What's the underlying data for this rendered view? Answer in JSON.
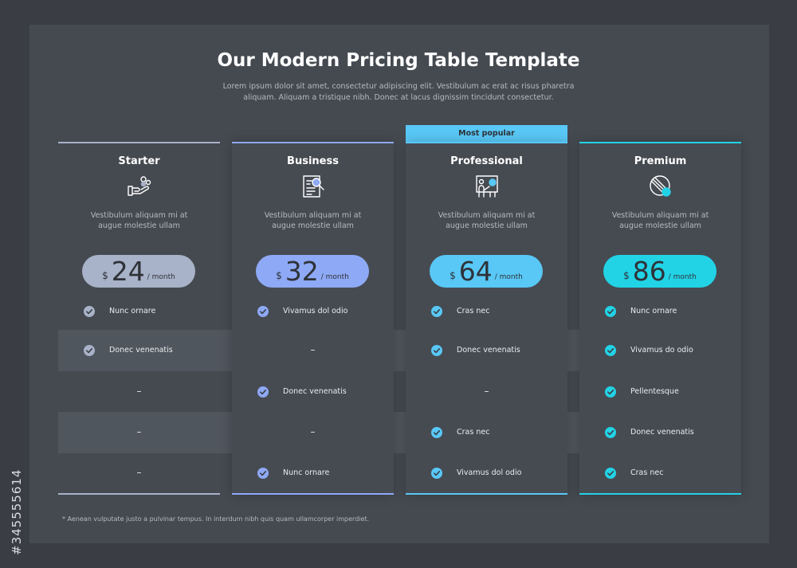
{
  "header": {
    "title": "Our Modern Pricing Table Template",
    "subtitle_line1": "Lorem ipsum dolor sit amet, consectetur adipiscing elit. Vestibulum ac erat ac risus pharetra",
    "subtitle_line2": "aliquam. Aliquam a tristique nibh. Donec at lacus dignissim tincidunt consectetur."
  },
  "popular_badge": "Most popular",
  "footnote": "* Aenean vulputate justo a pulvinar tempus. In interdum nibh quis quam ullamcorper imperdiet.",
  "side_id": "#345555614",
  "dash": "–",
  "plans": [
    {
      "name": "Starter",
      "icon": "hand-coins-icon",
      "color": "#a8b2c8",
      "desc_line1": "Vestibulum aliquam mi at",
      "desc_line2": "augue molestie ullam",
      "currency": "$",
      "price": "24",
      "period": "/ month",
      "features": [
        {
          "included": true,
          "text": "Nunc ornare"
        },
        {
          "included": true,
          "text": "Donec venenatis"
        },
        {
          "included": false,
          "text": ""
        },
        {
          "included": false,
          "text": ""
        },
        {
          "included": false,
          "text": ""
        }
      ]
    },
    {
      "name": "Business",
      "icon": "document-search-icon",
      "color": "#8ea9f5",
      "desc_line1": "Vestibulum aliquam mi at",
      "desc_line2": "augue molestie ullam",
      "currency": "$",
      "price": "32",
      "period": "/ month",
      "features": [
        {
          "included": true,
          "text": "Vivamus dol odio"
        },
        {
          "included": false,
          "text": ""
        },
        {
          "included": true,
          "text": "Donec venenatis"
        },
        {
          "included": false,
          "text": ""
        },
        {
          "included": true,
          "text": "Nunc ornare"
        }
      ]
    },
    {
      "name": "Professional",
      "icon": "presentation-icon",
      "color": "#59c8f6",
      "desc_line1": "Vestibulum aliquam mi at",
      "desc_line2": "augue molestie ullam",
      "currency": "$",
      "price": "64",
      "period": "/ month",
      "features": [
        {
          "included": true,
          "text": "Cras nec"
        },
        {
          "included": true,
          "text": "Donec venenatis"
        },
        {
          "included": false,
          "text": ""
        },
        {
          "included": true,
          "text": "Cras nec"
        },
        {
          "included": true,
          "text": "Vivamus dol odio"
        }
      ]
    },
    {
      "name": "Premium",
      "icon": "pie-chart-icon",
      "color": "#22d3e6",
      "desc_line1": "Vestibulum aliquam mi at",
      "desc_line2": "augue molestie ullam",
      "currency": "$",
      "price": "86",
      "period": "/ month",
      "features": [
        {
          "included": true,
          "text": "Nunc ornare"
        },
        {
          "included": true,
          "text": "Vivamus do odio"
        },
        {
          "included": true,
          "text": "Pellentesque"
        },
        {
          "included": true,
          "text": "Donec venenatis"
        },
        {
          "included": true,
          "text": "Cras nec"
        }
      ]
    }
  ]
}
